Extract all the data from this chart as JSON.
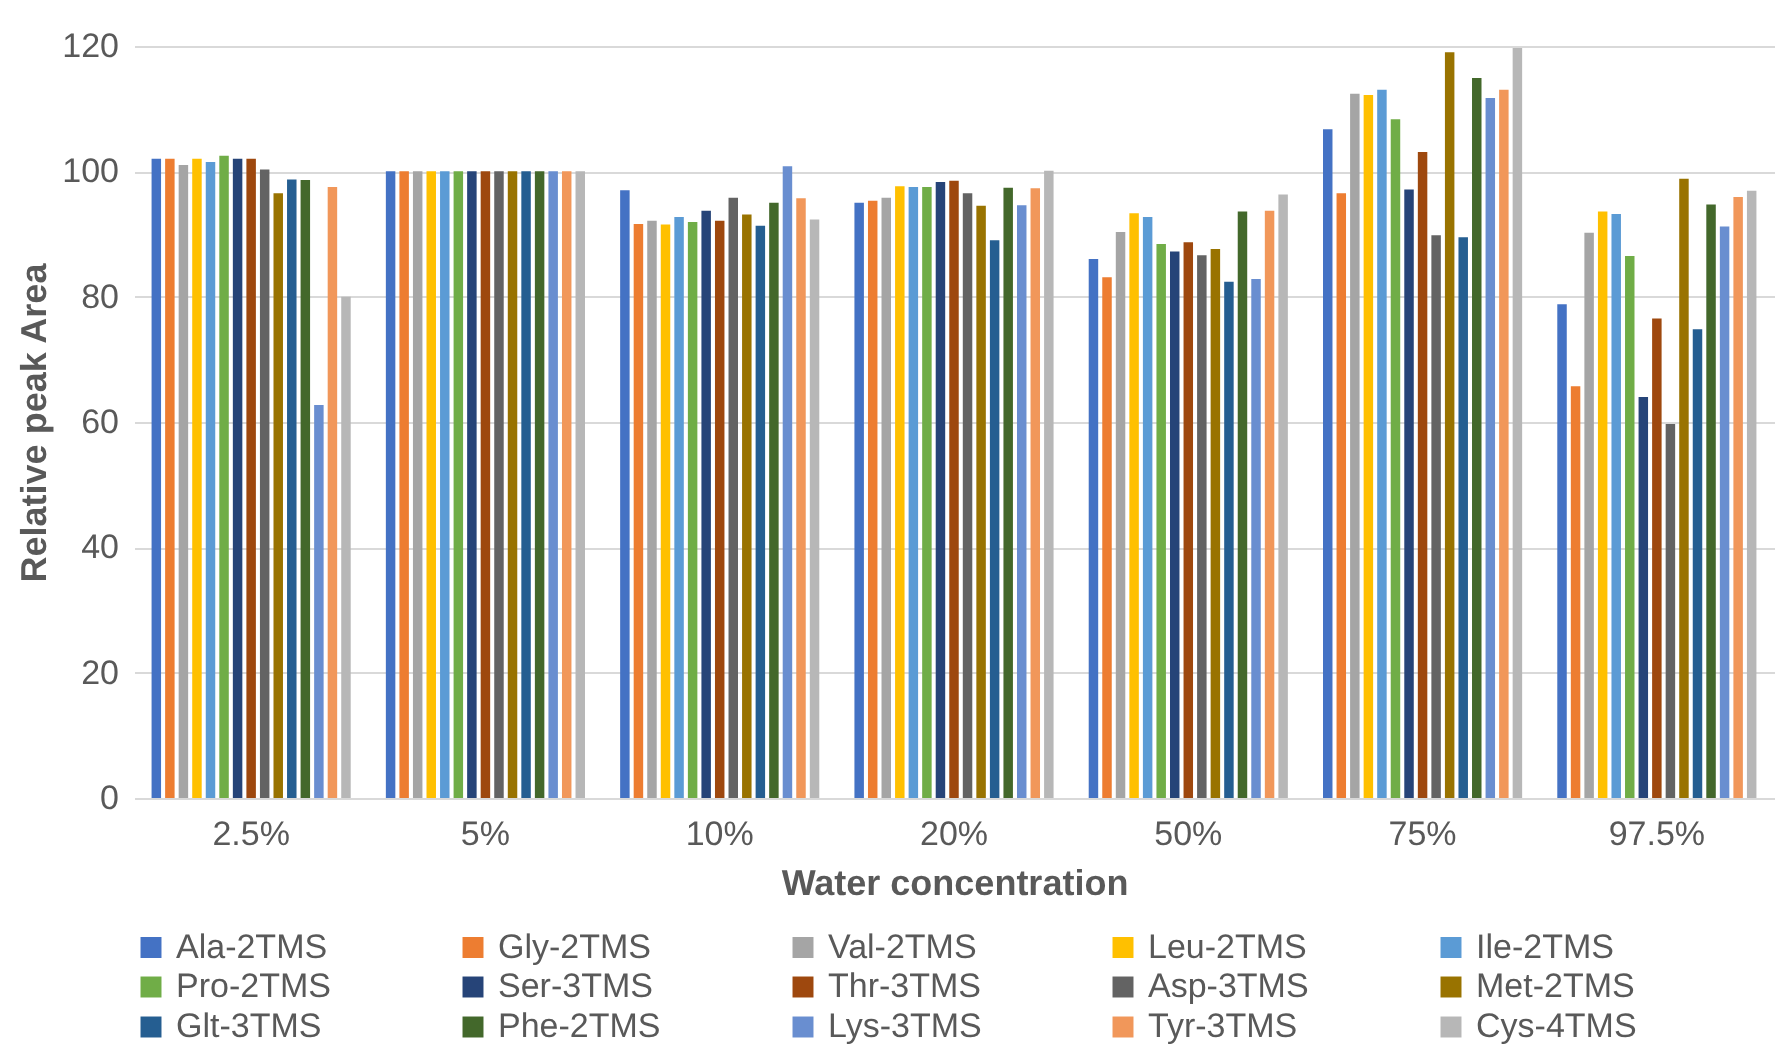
{
  "chart_data": {
    "type": "bar",
    "xlabel": "Water concentration",
    "ylabel": "Relative peak Area",
    "categories": [
      "2.5%",
      "5%",
      "10%",
      "20%",
      "50%",
      "75%",
      "97.5%"
    ],
    "ylim": [
      0,
      120
    ],
    "yticks": [
      0,
      20,
      40,
      60,
      80,
      100,
      120
    ],
    "grid": "y",
    "legend": "bottom",
    "series": [
      {
        "name": "Ala-2TMS",
        "color": "#4472c4",
        "values": [
          102,
          100,
          97,
          95,
          86,
          106.7,
          78.8
        ]
      },
      {
        "name": "Gly-2TMS",
        "color": "#ed7d31",
        "values": [
          102,
          100,
          91.6,
          95.3,
          83.1,
          96.5,
          65.7
        ]
      },
      {
        "name": "Val-2TMS",
        "color": "#a5a5a5",
        "values": [
          101,
          100,
          92.1,
          95.8,
          90.3,
          112.4,
          90.2
        ]
      },
      {
        "name": "Leu-2TMS",
        "color": "#ffc000",
        "values": [
          102,
          100,
          91.5,
          97.6,
          93.3,
          112.2,
          93.6
        ]
      },
      {
        "name": "Ile-2TMS",
        "color": "#5b9bd5",
        "values": [
          101.5,
          100,
          92.7,
          97.5,
          92.7,
          113,
          93.2
        ]
      },
      {
        "name": "Pro-2TMS",
        "color": "#70ad47",
        "values": [
          102.5,
          100,
          91.9,
          97.5,
          88.4,
          108.3,
          86.5
        ]
      },
      {
        "name": "Ser-3TMS",
        "color": "#264478",
        "values": [
          102,
          100,
          93.7,
          98.3,
          87.2,
          97.1,
          64
        ]
      },
      {
        "name": "Thr-3TMS",
        "color": "#9e480e",
        "values": [
          102,
          100,
          92.1,
          98.5,
          88.7,
          103.1,
          76.5
        ]
      },
      {
        "name": "Asp-3TMS",
        "color": "#636363",
        "values": [
          100.3,
          100,
          95.8,
          96.5,
          86.6,
          89.8,
          59.7
        ]
      },
      {
        "name": "Met-2TMS",
        "color": "#997300",
        "values": [
          96.5,
          100,
          93.1,
          94.5,
          87.6,
          119,
          98.8
        ]
      },
      {
        "name": "Glt-3TMS",
        "color": "#255e91",
        "values": [
          98.7,
          100,
          91.3,
          89,
          82.4,
          89.5,
          74.8
        ]
      },
      {
        "name": "Phe-2TMS",
        "color": "#43682b",
        "values": [
          98.6,
          100,
          95,
          97.4,
          93.6,
          114.9,
          94.7
        ]
      },
      {
        "name": "Lys-3TMS",
        "color": "#698ed0",
        "values": [
          62.7,
          100,
          100.8,
          94.6,
          82.8,
          111.7,
          91.2
        ]
      },
      {
        "name": "Tyr-3TMS",
        "color": "#f1975a",
        "values": [
          97.5,
          100,
          95.7,
          97.3,
          93.7,
          113,
          95.9
        ]
      },
      {
        "name": "Cys-4TMS",
        "color": "#b7b7b7",
        "values": [
          80,
          100,
          92.3,
          100.1,
          96.3,
          119.7,
          96.9
        ]
      }
    ]
  }
}
